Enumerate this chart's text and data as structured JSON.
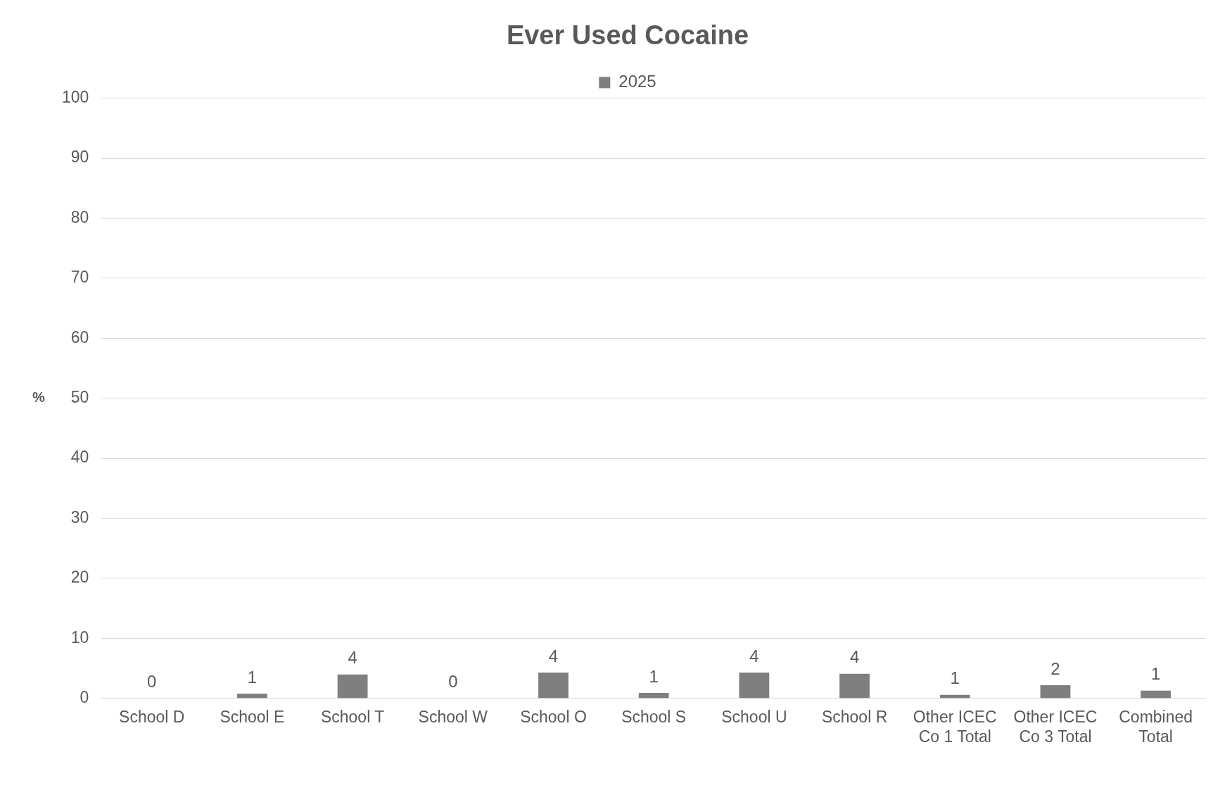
{
  "chart_data": {
    "type": "bar",
    "title": "Ever Used Cocaine",
    "ylabel": "%",
    "categories": [
      "School D",
      "School E",
      "School T",
      "School W",
      "School O",
      "School S",
      "School U",
      "School R",
      "Other ICEC Co 1 Total",
      "Other ICEC Co 3 Total",
      "Combined Total"
    ],
    "series": [
      {
        "name": "2025",
        "color": "#7f7f7f",
        "values": [
          0,
          0.8,
          4,
          0,
          4.3,
          0.9,
          4.3,
          4.1,
          0.6,
          2.2,
          1.3
        ],
        "value_labels": [
          "0",
          "1",
          "4",
          "0",
          "4",
          "1",
          "4",
          "4",
          "1",
          "2",
          "1"
        ]
      }
    ],
    "ylim": [
      0,
      100
    ],
    "yticks": [
      0,
      10,
      20,
      30,
      40,
      50,
      60,
      70,
      80,
      90,
      100
    ],
    "grid": "y",
    "legend": "top"
  }
}
